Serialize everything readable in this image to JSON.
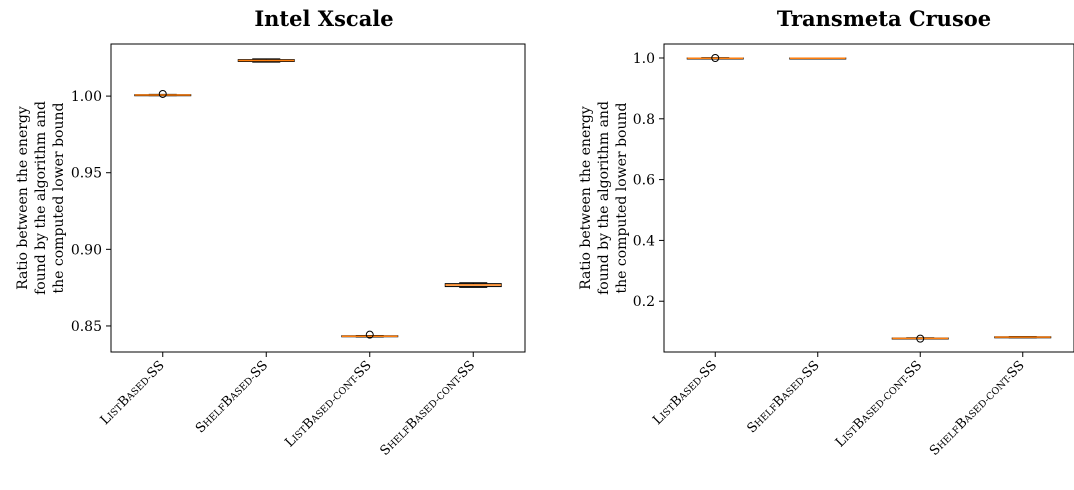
{
  "chart_data": [
    {
      "type": "box",
      "title": "Intel Xscale",
      "ylabel": [
        "Ratio between the energy",
        "found by the algorithm and",
        "the computed lower bound"
      ],
      "categories": [
        "ListBased-SS",
        "ShelfBased-SS",
        "ListBased-cont-SS",
        "ShelfBased-cont-SS"
      ],
      "ylim": [
        0.833,
        1.034
      ],
      "yticks": [
        0.85,
        0.9,
        0.95,
        1.0
      ],
      "ytick_labels": [
        "0.85",
        "0.90",
        "0.95",
        "1.00"
      ],
      "boxes": [
        {
          "whislo": 1.0003,
          "q1": 1.0005,
          "med": 1.0007,
          "q3": 1.0009,
          "whishi": 1.0011,
          "fliers": [
            1.0014
          ]
        },
        {
          "whislo": 1.0222,
          "q1": 1.0226,
          "med": 1.0232,
          "q3": 1.0238,
          "whishi": 1.0243,
          "fliers": []
        },
        {
          "whislo": 0.8428,
          "q1": 0.843,
          "med": 0.8433,
          "q3": 0.8436,
          "whishi": 0.8438,
          "fliers": [
            0.8443
          ]
        },
        {
          "whislo": 0.8752,
          "q1": 0.8757,
          "med": 0.8767,
          "q3": 0.8776,
          "whishi": 0.8782,
          "fliers": []
        }
      ]
    },
    {
      "type": "box",
      "title": "Transmeta Crusoe",
      "ylabel": [
        "Ratio between the energy",
        "found by the algorithm and",
        "the computed lower bound"
      ],
      "categories": [
        "ListBased-SS",
        "ShelfBased-SS",
        "ListBased-cont-SS",
        "ShelfBased-cont-SS"
      ],
      "ylim": [
        0.033,
        1.046
      ],
      "yticks": [
        0.2,
        0.4,
        0.6,
        0.8,
        1.0
      ],
      "ytick_labels": [
        "0.2",
        "0.4",
        "0.6",
        "0.8",
        "1.0"
      ],
      "boxes": [
        {
          "whislo": 0.997,
          "q1": 0.998,
          "med": 0.999,
          "q3": 1.0,
          "whishi": 1.001,
          "fliers": [
            1.0
          ]
        },
        {
          "whislo": 0.998,
          "q1": 0.999,
          "med": 0.999,
          "q3": 1.0,
          "whishi": 1.0,
          "fliers": []
        },
        {
          "whislo": 0.076,
          "q1": 0.077,
          "med": 0.078,
          "q3": 0.079,
          "whishi": 0.08,
          "fliers": [
            0.077
          ]
        },
        {
          "whislo": 0.08,
          "q1": 0.081,
          "med": 0.082,
          "q3": 0.083,
          "whishi": 0.084,
          "fliers": []
        }
      ]
    }
  ],
  "colors": {
    "box": "#000000",
    "median": "#ff7f0e",
    "axis": "#000000"
  }
}
